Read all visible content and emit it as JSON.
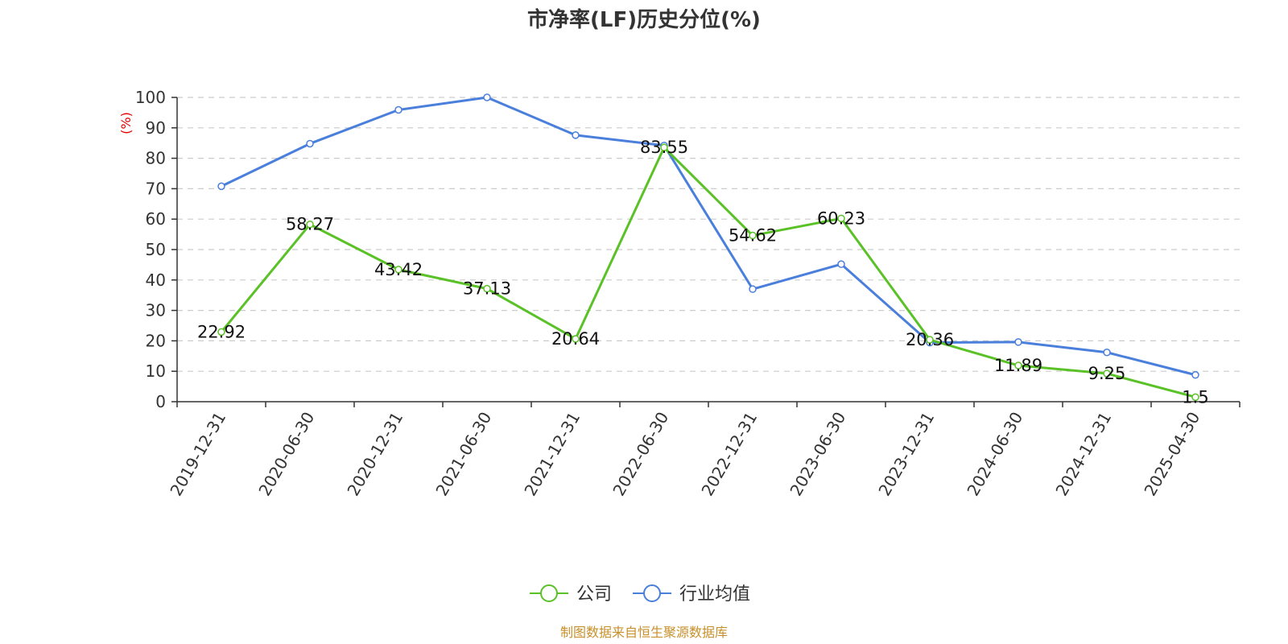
{
  "chart_data": {
    "type": "line",
    "title": "市净率(LF)历史分位(%)",
    "ylabel": "(%)",
    "xlabel": "",
    "ylim": [
      0,
      100
    ],
    "yticks": [
      0,
      10,
      20,
      30,
      40,
      50,
      60,
      70,
      80,
      90,
      100
    ],
    "categories": [
      "2019-12-31",
      "2020-06-30",
      "2020-12-31",
      "2021-06-30",
      "2021-12-31",
      "2022-06-30",
      "2022-12-31",
      "2023-06-30",
      "2023-12-31",
      "2024-06-30",
      "2024-12-31",
      "2025-04-30"
    ],
    "grid": true,
    "legend_position": "bottom",
    "series": [
      {
        "name": "公司",
        "color": "#5ac127",
        "values": [
          22.92,
          58.27,
          43.42,
          37.13,
          20.64,
          83.55,
          54.62,
          60.23,
          20.36,
          11.89,
          9.25,
          1.5
        ],
        "labels": [
          "22.92",
          "58.27",
          "43.42",
          "37.13",
          "20.64",
          "83.55",
          "54.62",
          "60.23",
          "20.36",
          "11.89",
          "9.25",
          "1.5"
        ]
      },
      {
        "name": "行业均值",
        "color": "#4a7fdc",
        "values": [
          70.8,
          84.8,
          95.9,
          100,
          87.6,
          84.2,
          37.0,
          45.2,
          19.4,
          19.6,
          16.2,
          8.8
        ]
      }
    ]
  },
  "source": "制图数据来自恒生聚源数据库"
}
